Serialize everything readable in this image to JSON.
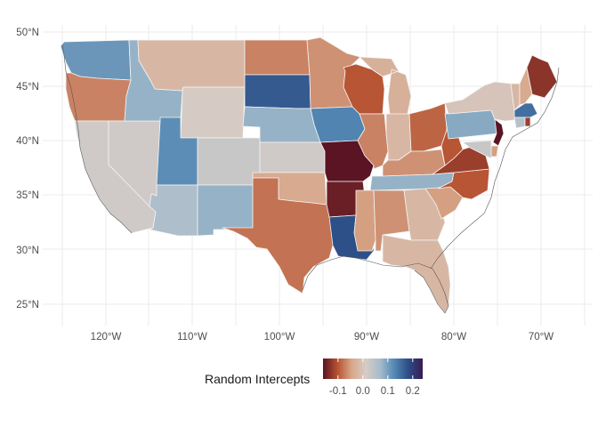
{
  "map": {
    "type": "choropleth",
    "region": "Contiguous United States",
    "lat_ticks": [
      "25°N",
      "30°N",
      "35°N",
      "40°N",
      "45°N",
      "50°N"
    ],
    "lon_ticks": [
      "120°W",
      "110°W",
      "100°W",
      "90°W",
      "80°W",
      "70°W"
    ],
    "lon_range": [
      -126,
      -65
    ],
    "lat_range": [
      23.5,
      50.5
    ]
  },
  "legend": {
    "title": "Random Intercepts",
    "tick_labels": [
      "-0.1",
      "0.0",
      "0.1",
      "0.2"
    ],
    "tick_values": [
      -0.1,
      0.0,
      0.1,
      0.2
    ],
    "range": [
      -0.16,
      0.24
    ],
    "colors": [
      "#5a1424",
      "#b5512f",
      "#d8a689",
      "#d6ccc6",
      "#a7bccb",
      "#5488b4",
      "#2c4d86",
      "#3a1a52"
    ]
  },
  "states": [
    {
      "name": "Washington",
      "value": 0.11
    },
    {
      "name": "Oregon",
      "value": -0.07
    },
    {
      "name": "California",
      "value": 0.02
    },
    {
      "name": "Nevada",
      "value": 0.02
    },
    {
      "name": "Idaho",
      "value": 0.08
    },
    {
      "name": "Montana",
      "value": -0.02
    },
    {
      "name": "Wyoming",
      "value": 0.01
    },
    {
      "name": "Utah",
      "value": 0.12
    },
    {
      "name": "Arizona",
      "value": 0.06
    },
    {
      "name": "Colorado",
      "value": 0.03
    },
    {
      "name": "New Mexico",
      "value": 0.08
    },
    {
      "name": "North Dakota",
      "value": -0.07
    },
    {
      "name": "South Dakota",
      "value": 0.17
    },
    {
      "name": "Nebraska",
      "value": 0.08
    },
    {
      "name": "Kansas",
      "value": 0.02
    },
    {
      "name": "Oklahoma",
      "value": -0.04
    },
    {
      "name": "Texas",
      "value": -0.08
    },
    {
      "name": "Minnesota",
      "value": -0.06
    },
    {
      "name": "Iowa",
      "value": 0.13
    },
    {
      "name": "Missouri",
      "value": -0.16
    },
    {
      "name": "Arkansas",
      "value": -0.15
    },
    {
      "name": "Louisiana",
      "value": 0.18
    },
    {
      "name": "Wisconsin",
      "value": -0.1
    },
    {
      "name": "Illinois",
      "value": -0.07
    },
    {
      "name": "Michigan",
      "value": -0.03
    },
    {
      "name": "Indiana",
      "value": -0.02
    },
    {
      "name": "Ohio",
      "value": -0.09
    },
    {
      "name": "Kentucky",
      "value": -0.06
    },
    {
      "name": "Tennessee",
      "value": 0.08
    },
    {
      "name": "Mississippi",
      "value": -0.05
    },
    {
      "name": "Alabama",
      "value": -0.06
    },
    {
      "name": "Georgia",
      "value": -0.02
    },
    {
      "name": "Florida",
      "value": -0.02
    },
    {
      "name": "South Carolina",
      "value": -0.05
    },
    {
      "name": "North Carolina",
      "value": -0.1
    },
    {
      "name": "Virginia",
      "value": -0.12
    },
    {
      "name": "West Virginia",
      "value": -0.1
    },
    {
      "name": "Pennsylvania",
      "value": 0.09
    },
    {
      "name": "New York",
      "value": 0.0
    },
    {
      "name": "Vermont",
      "value": -0.02
    },
    {
      "name": "New Hampshire",
      "value": -0.04
    },
    {
      "name": "Maine",
      "value": -0.13
    },
    {
      "name": "Massachusetts",
      "value": 0.15
    },
    {
      "name": "Connecticut",
      "value": 0.05
    },
    {
      "name": "Rhode Island",
      "value": -0.12
    },
    {
      "name": "New Jersey",
      "value": -0.16
    },
    {
      "name": "Delaware",
      "value": -0.05
    },
    {
      "name": "Maryland",
      "value": 0.03
    }
  ]
}
